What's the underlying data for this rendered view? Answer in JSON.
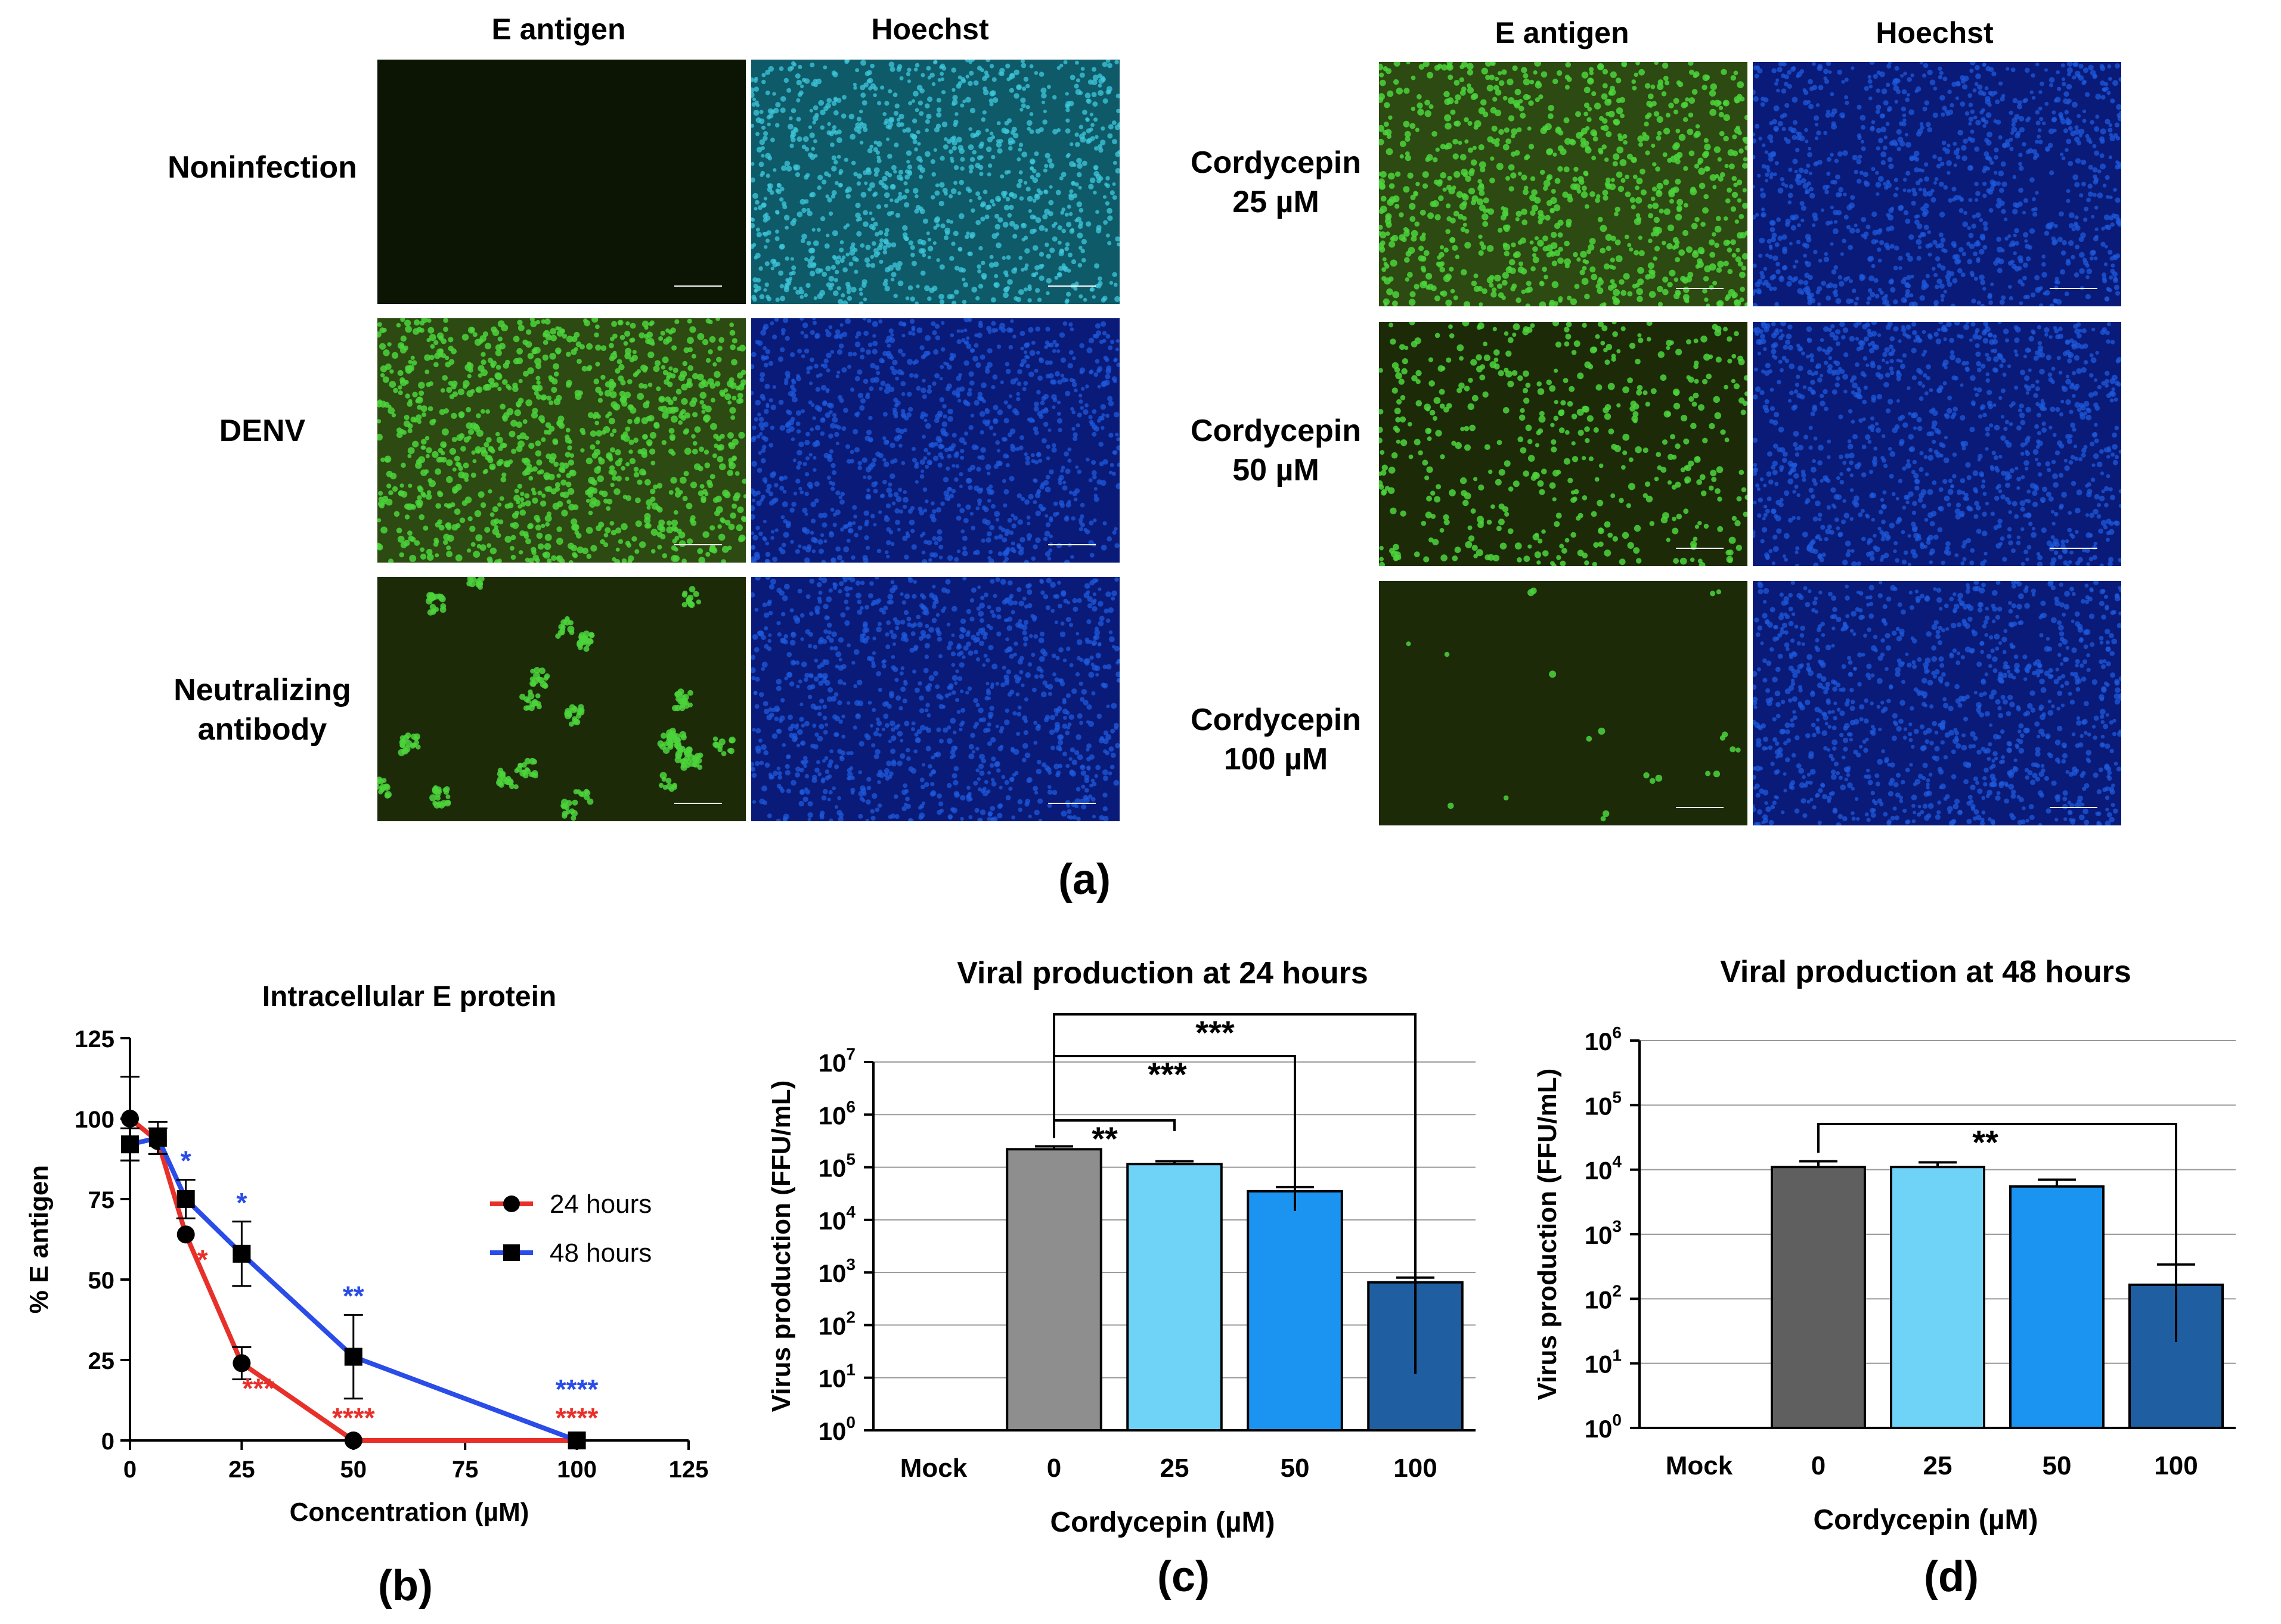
{
  "panel_a": {
    "left_col_headers": [
      "E antigen",
      "Hoechst"
    ],
    "right_col_headers": [
      "E antigen",
      "Hoechst"
    ],
    "left_rows": [
      {
        "label_lines": [
          "Noninfection"
        ],
        "e_fill": 0.0,
        "e_pattern": "none",
        "nuclei": "cyan"
      },
      {
        "label_lines": [
          "DENV"
        ],
        "e_fill": 0.9,
        "e_pattern": "dense",
        "nuclei": "blue"
      },
      {
        "label_lines": [
          "Neutralizing",
          "antibody"
        ],
        "e_fill": 0.25,
        "e_pattern": "clusters",
        "nuclei": "blue"
      }
    ],
    "right_rows": [
      {
        "label_lines": [
          "Cordycepin",
          "25 µM"
        ],
        "e_fill": 0.75,
        "e_pattern": "dense",
        "nuclei": "blue"
      },
      {
        "label_lines": [
          "Cordycepin",
          "50 µM"
        ],
        "e_fill": 0.4,
        "e_pattern": "scattered",
        "nuclei": "blue"
      },
      {
        "label_lines": [
          "Cordycepin",
          "100 µM"
        ],
        "e_fill": 0.05,
        "e_pattern": "sparse",
        "nuclei": "blue"
      }
    ],
    "colors": {
      "green_cell": "#4cd43c",
      "green_bg": "#1c2a08",
      "cyan_nuc": "#3fc8dc",
      "cyan_bg": "#0e5a68",
      "blue_nuc": "#1e5adc",
      "blue_bg": "#0a1a78",
      "dark_bg": "#0c1404"
    },
    "letter": "(a)"
  },
  "chart_data": [
    {
      "type": "line",
      "title": "Intracellular E protein",
      "xlabel": "Concentration (µM)",
      "ylabel": "% E antigen",
      "xlim": [
        0,
        125
      ],
      "ylim": [
        0,
        125
      ],
      "xticks": [
        "0",
        "25",
        "50",
        "75",
        "100",
        "125"
      ],
      "yticks": [
        "0",
        "25",
        "50",
        "75",
        "100",
        "125"
      ],
      "legend_position": "right",
      "series": [
        {
          "name": "24 hours",
          "color": "#e8302a",
          "marker": "circle",
          "x": [
            0,
            6.25,
            12.5,
            25,
            50,
            100
          ],
          "y": [
            100,
            93,
            64,
            24,
            0,
            0
          ],
          "err": [
            13,
            4,
            0,
            5,
            0,
            0
          ],
          "sig": [
            "",
            "",
            "*",
            "***",
            "****",
            "****"
          ]
        },
        {
          "name": "48 hours",
          "color": "#2a4ce8",
          "marker": "square",
          "x": [
            0,
            6.25,
            12.5,
            25,
            50,
            100
          ],
          "y": [
            92,
            94,
            75,
            58,
            26,
            0
          ],
          "err": [
            5,
            5,
            6,
            10,
            13,
            0
          ],
          "sig": [
            "",
            "",
            "*",
            "*",
            "**",
            "****"
          ]
        }
      ],
      "letter": "(b)"
    },
    {
      "type": "bar",
      "title": "Viral production at 24 hours",
      "xlabel": "Cordycepin (µM)",
      "ylabel": "Virus production (FFU/mL)",
      "yscale": "log",
      "ylim": [
        1,
        10000000
      ],
      "ytick_exponents": [
        0,
        1,
        2,
        3,
        4,
        5,
        6,
        7
      ],
      "categories": [
        "Mock",
        "0",
        "25",
        "50",
        "100"
      ],
      "values": [
        0,
        220000,
        115000,
        35000,
        650
      ],
      "err_upper": [
        0,
        250000,
        130000,
        42000,
        800
      ],
      "bar_colors": [
        "none",
        "#8e8e8e",
        "#6fd3f8",
        "#1a94f0",
        "#1f5ea0"
      ],
      "grid": true,
      "brackets": [
        {
          "from": "0",
          "to": "25",
          "label": "**"
        },
        {
          "from": "0",
          "to": "50",
          "label": "***"
        },
        {
          "from": "0",
          "to": "100",
          "label": "***"
        }
      ],
      "letter": "(c)"
    },
    {
      "type": "bar",
      "title": "Viral production at 48 hours",
      "xlabel": "Cordycepin (µM)",
      "ylabel": "Virus production (FFU/mL)",
      "yscale": "log",
      "ylim": [
        1,
        1000000
      ],
      "ytick_exponents": [
        0,
        1,
        2,
        3,
        4,
        5,
        6
      ],
      "categories": [
        "Mock",
        "0",
        "25",
        "50",
        "100"
      ],
      "values": [
        0,
        11000,
        11000,
        5500,
        165
      ],
      "err_upper": [
        0,
        13500,
        13000,
        7000,
        340
      ],
      "bar_colors": [
        "none",
        "#5f5f5f",
        "#6fd3f8",
        "#1a94f0",
        "#1f5ea0"
      ],
      "grid": true,
      "brackets": [
        {
          "from": "0",
          "to": "100",
          "label": "**"
        }
      ],
      "letter": "(d)"
    }
  ]
}
